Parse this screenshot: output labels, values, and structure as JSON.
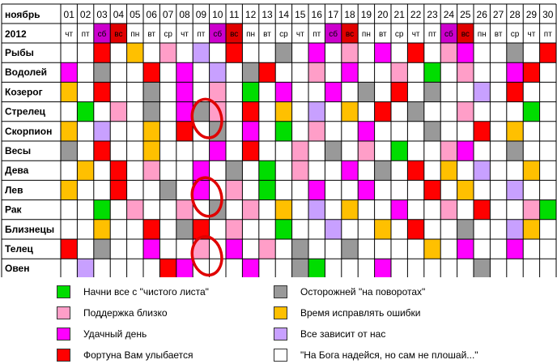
{
  "header": {
    "month_label": "ноябрь",
    "year_label": "2012"
  },
  "days": [
    "01",
    "02",
    "03",
    "04",
    "05",
    "06",
    "07",
    "08",
    "09",
    "10",
    "11",
    "12",
    "13",
    "14",
    "15",
    "16",
    "17",
    "18",
    "19",
    "20",
    "21",
    "22",
    "23",
    "24",
    "25",
    "26",
    "27",
    "28",
    "29",
    "30"
  ],
  "weekdays": [
    "чт",
    "пт",
    "сб",
    "вс",
    "пн",
    "вт",
    "ср",
    "чт",
    "пт",
    "сб",
    "вс",
    "пн",
    "вт",
    "ср",
    "чт",
    "пт",
    "сб",
    "вс",
    "пн",
    "вт",
    "ср",
    "чт",
    "пт",
    "сб",
    "вс",
    "пн",
    "вт",
    "ср",
    "чт",
    "пт"
  ],
  "colors": {
    "G": "#00dd00",
    "P": "#ff9ec8",
    "M": "#ff00ff",
    "R": "#ff0000",
    "D": "#999999",
    "Y": "#ffc000",
    "L": "#c8a0ff",
    "W": "#ffffff",
    "weekend_day": "#cc00cc",
    "weekend_sunday": "#e00000",
    "circle": "#e00000"
  },
  "signs": [
    {
      "name": "Рыбы",
      "cells": "WWRWYWPWLWRWWDWMWPWMWRWPMWWDWR"
    },
    {
      "name": "Водолей",
      "cells": "MWDWWRWMWLWDRWWPWMWWPWGWPWWMRW"
    },
    {
      "name": "Козерог",
      "cells": "YWRWWDWMWPWGWMWWMWDWRWDWWLWRWW"
    },
    {
      "name": "Стрелец",
      "cells": "WGWPWDWMDPWRWYWLWYWRWDWWPWWWGW"
    },
    {
      "name": "Скорпион",
      "cells": "YWLWWYWRWDWMWGWPWWMWWWDWWRWYWW"
    },
    {
      "name": "Весы",
      "cells": "DWRWWYWWWMWRWWPWDWPWGWWPMWWDWW"
    },
    {
      "name": "Дева",
      "cells": "WYWRWPWWMWDWGWPWWMWDWRWYWLWWYW"
    },
    {
      "name": "Лев",
      "cells": "YWWRWWDWMWPWGWWMWWMWWWRWYWWLWW"
    },
    {
      "name": "Рак",
      "cells": "WWGWPWWPWDWPWYWLWYWWMWWPWRWWPG"
    },
    {
      "name": "Близнецы",
      "cells": "WWYWWRWDRWPWWGWWLWWYWRWWDWWLYW"
    },
    {
      "name": "Телец",
      "cells": "RWDWWMWWPWMWPWDWWDWWWWYWMWWMWW"
    },
    {
      "name": "Овен",
      "cells": "WLWWWWRMWWWMWWDGWWWMWWWWWDWWWW"
    }
  ],
  "highlight_circles": [
    {
      "row": 3,
      "day_index": 9
    },
    {
      "row": 7,
      "day_index": 9
    },
    {
      "row": 10,
      "day_index": 9
    }
  ],
  "legend": [
    {
      "key": "G",
      "label": "Начни все с \"чистого листа\""
    },
    {
      "key": "P",
      "label": "Поддержка близко"
    },
    {
      "key": "M",
      "label": "Удачный день"
    },
    {
      "key": "R",
      "label": "Фортуна Вам улыбается"
    },
    {
      "key": "D",
      "label": "Осторожней \"на поворотах\""
    },
    {
      "key": "Y",
      "label": "Время исправлять ошибки"
    },
    {
      "key": "L",
      "label": "Все зависит от нас"
    },
    {
      "key": "W",
      "label": "\"На Бога надейся, но сам не плошай...\""
    }
  ]
}
